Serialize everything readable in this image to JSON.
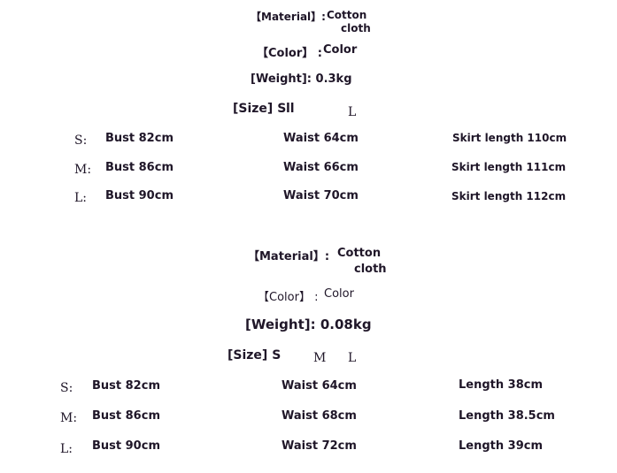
{
  "sections": [
    {
      "material_label": "【Material】:",
      "material_value_1": "Cotton",
      "material_value_2": "cloth",
      "color_label": "【Color】 :",
      "color_value": "Color",
      "weight": "[Weight]: 0.3kg",
      "size_label": "[Size] S",
      "size_m": "ll",
      "size_l": "L",
      "rows": [
        {
          "size": "S:",
          "bust": "Bust 82cm",
          "waist": "Waist 64cm",
          "length": "Skirt length 110cm"
        },
        {
          "size": "M:",
          "bust": "Bust 86cm",
          "waist": "Waist 66cm",
          "length": "Skirt length 111cm"
        },
        {
          "size": "L:",
          "bust": "Bust 90cm",
          "waist": "Waist 70cm",
          "length": "Skirt length 112cm"
        }
      ]
    },
    {
      "material_label": "【Material】:",
      "material_value_1": "Cotton",
      "material_value_2": "cloth",
      "color_label": "【Color】 :",
      "color_value": "Color",
      "weight": "[Weight]: 0.08kg",
      "size_label": "[Size] S",
      "size_m": "M",
      "size_l": "L",
      "rows": [
        {
          "size": "S:",
          "bust": "Bust 82cm",
          "waist": "Waist 64cm",
          "length": "Length 38cm"
        },
        {
          "size": "M:",
          "bust": "Bust 86cm",
          "waist": "Waist 68cm",
          "length": "Length 38.5cm"
        },
        {
          "size": "L:",
          "bust": "Bust 90cm",
          "waist": "Waist 72cm",
          "length": "Length 39cm"
        }
      ]
    }
  ]
}
